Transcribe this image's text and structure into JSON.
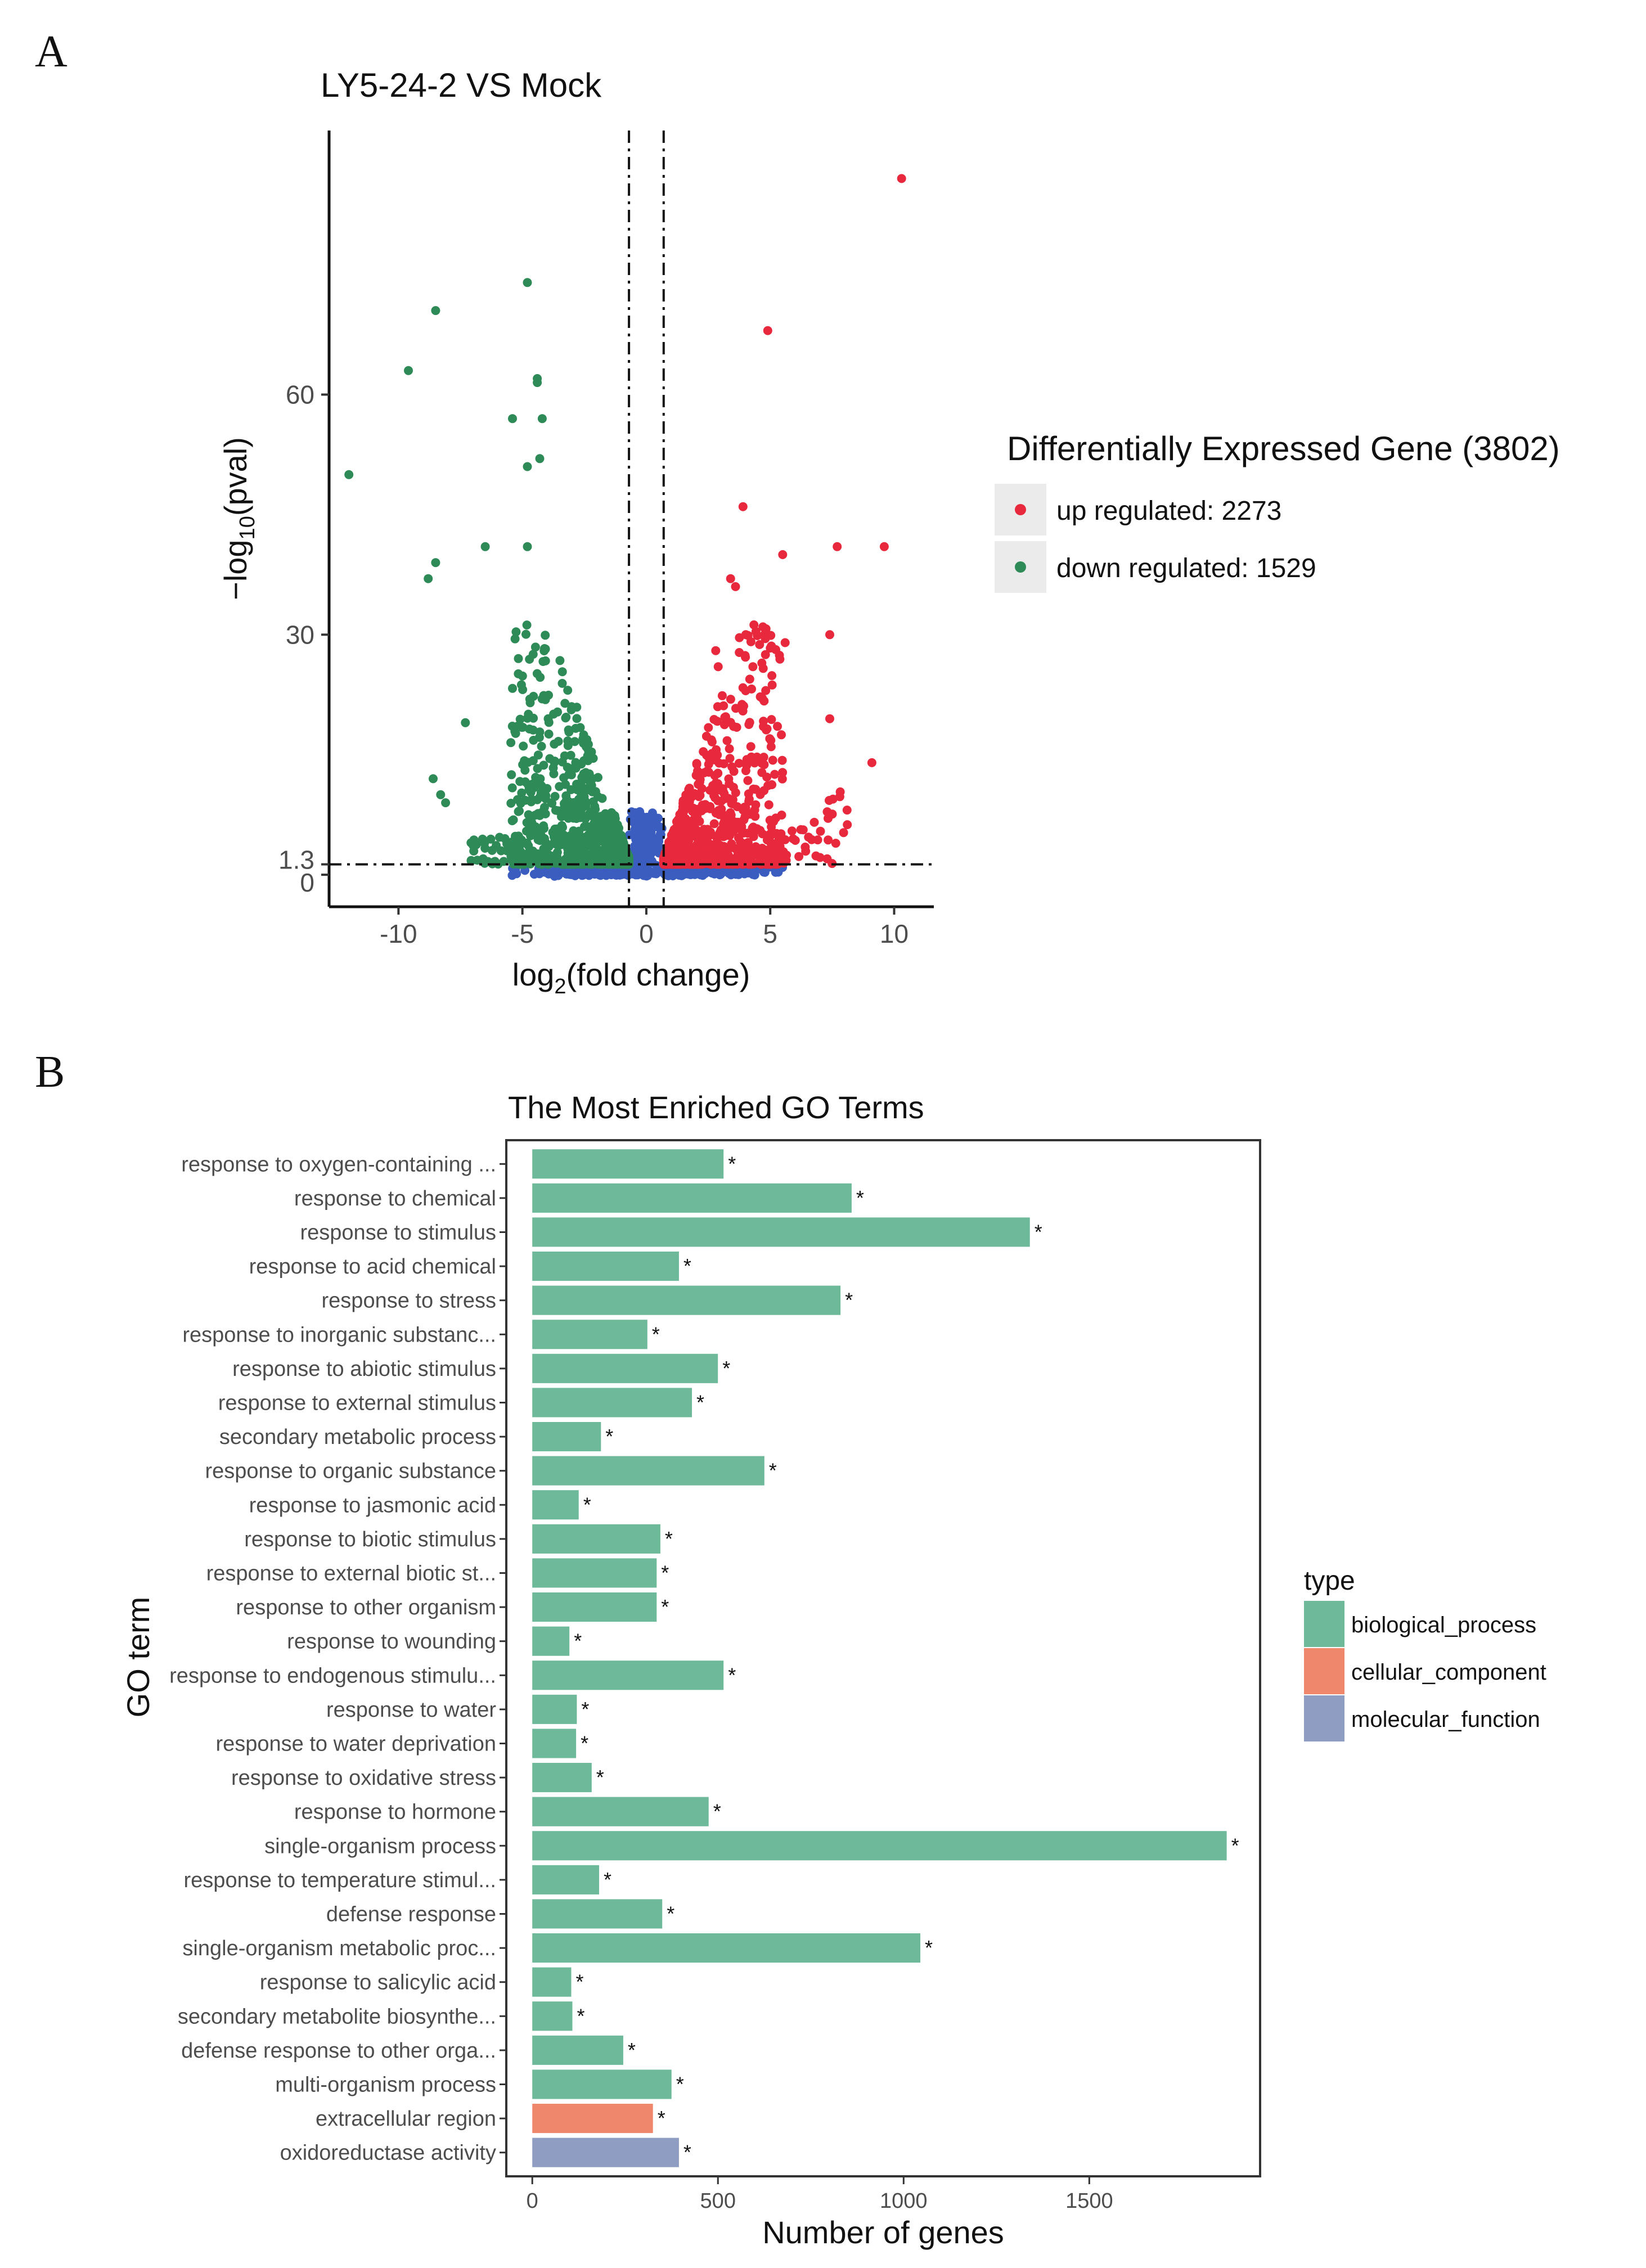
{
  "panels": {
    "a": "A",
    "b": "B"
  },
  "chart_data": [
    {
      "type": "scatter",
      "title": "LY5-24-2 VS Mock",
      "xlabel": {
        "main": "log",
        "sub": "2",
        "rest": "(fold change)"
      },
      "ylabel": {
        "pre": "−log",
        "sub": "10",
        "rest": "(pval)"
      },
      "xlim": [
        -12.8,
        11.6
      ],
      "ylim": [
        -4,
        93
      ],
      "x_ticks": [
        -10,
        -5,
        0,
        5,
        10
      ],
      "y_ticks": [
        {
          "value": 0,
          "label": "0"
        },
        {
          "value": 1.3,
          "label": "1.3"
        },
        {
          "value": 30,
          "label": "30"
        },
        {
          "value": 60,
          "label": "60"
        }
      ],
      "thresholds": {
        "log2fc": [
          -0.7,
          0.7
        ],
        "neg_log10_pval": 1.3
      },
      "legend_title": "Differentially Expressed Gene (3802)",
      "legend": [
        {
          "label": "up regulated: 2273",
          "color": "#e8283c"
        },
        {
          "label": "down regulated: 1529",
          "color": "#2e8b57"
        }
      ],
      "colors": {
        "up": "#e8283c",
        "down": "#2e8b57",
        "ns": "#3a5dbf"
      },
      "highlighted_points": {
        "up": [
          [
            10.3,
            87
          ],
          [
            4.9,
            68
          ],
          [
            3.9,
            46
          ],
          [
            5.5,
            40
          ],
          [
            7.7,
            41
          ],
          [
            9.6,
            41
          ],
          [
            3.4,
            37
          ],
          [
            3.6,
            36
          ],
          [
            7.4,
            30
          ],
          [
            5.6,
            29
          ],
          [
            4.8,
            29.5
          ],
          [
            7.4,
            19.5
          ],
          [
            9.1,
            14
          ],
          [
            4.3,
            26
          ],
          [
            2.8,
            28
          ],
          [
            2.9,
            26
          ]
        ],
        "down": [
          [
            -4.8,
            74
          ],
          [
            -8.5,
            70.5
          ],
          [
            -9.6,
            63
          ],
          [
            -4.4,
            62
          ],
          [
            -4.4,
            61.5
          ],
          [
            -5.4,
            57
          ],
          [
            -4.2,
            57
          ],
          [
            -12,
            50
          ],
          [
            -4.3,
            52
          ],
          [
            -4.8,
            51
          ],
          [
            -8.5,
            39
          ],
          [
            -8.8,
            37
          ],
          [
            -6.5,
            41
          ],
          [
            -4.8,
            41
          ],
          [
            -7.3,
            19
          ],
          [
            -8.6,
            12
          ],
          [
            -8.3,
            10
          ],
          [
            -8.1,
            9
          ]
        ]
      },
      "bulk_counts": {
        "up": 780,
        "down": 700,
        "ns": 520
      }
    },
    {
      "type": "bar",
      "orientation": "horizontal",
      "title": "The Most Enriched GO Terms",
      "xlabel": "Number of genes",
      "ylabel": "GO term",
      "xlim": [
        -70,
        1960
      ],
      "x_ticks": [
        0,
        500,
        1000,
        1500
      ],
      "legend_title": "type",
      "legend": [
        {
          "label": "biological_process",
          "color": "#6db999"
        },
        {
          "label": "cellular_component",
          "color": "#ef876d"
        },
        {
          "label": "molecular_function",
          "color": "#8f9dc3"
        }
      ],
      "bars": [
        {
          "term": "response to oxygen-containing ...",
          "value": 515,
          "type": "biological_process",
          "mark": "*"
        },
        {
          "term": "response to chemical",
          "value": 860,
          "type": "biological_process",
          "mark": "*"
        },
        {
          "term": "response to stimulus",
          "value": 1340,
          "type": "biological_process",
          "mark": "*"
        },
        {
          "term": "response to acid chemical",
          "value": 395,
          "type": "biological_process",
          "mark": "*"
        },
        {
          "term": "response to stress",
          "value": 830,
          "type": "biological_process",
          "mark": "*"
        },
        {
          "term": "response to inorganic substanc...",
          "value": 310,
          "type": "biological_process",
          "mark": "*"
        },
        {
          "term": "response to abiotic stimulus",
          "value": 500,
          "type": "biological_process",
          "mark": "*"
        },
        {
          "term": "response to external stimulus",
          "value": 430,
          "type": "biological_process",
          "mark": "*"
        },
        {
          "term": "secondary metabolic process",
          "value": 185,
          "type": "biological_process",
          "mark": "*"
        },
        {
          "term": "response to organic substance",
          "value": 625,
          "type": "biological_process",
          "mark": "*"
        },
        {
          "term": "response to jasmonic acid",
          "value": 125,
          "type": "biological_process",
          "mark": "*"
        },
        {
          "term": "response to biotic stimulus",
          "value": 345,
          "type": "biological_process",
          "mark": "*"
        },
        {
          "term": "response to external biotic st...",
          "value": 335,
          "type": "biological_process",
          "mark": "*"
        },
        {
          "term": "response to other organism",
          "value": 335,
          "type": "biological_process",
          "mark": "*"
        },
        {
          "term": "response to wounding",
          "value": 100,
          "type": "biological_process",
          "mark": "*"
        },
        {
          "term": "response to endogenous stimulu...",
          "value": 515,
          "type": "biological_process",
          "mark": "*"
        },
        {
          "term": "response to water",
          "value": 120,
          "type": "biological_process",
          "mark": "*"
        },
        {
          "term": "response to water deprivation",
          "value": 118,
          "type": "biological_process",
          "mark": "*"
        },
        {
          "term": "response to oxidative stress",
          "value": 160,
          "type": "biological_process",
          "mark": "*"
        },
        {
          "term": "response to hormone",
          "value": 475,
          "type": "biological_process",
          "mark": "*"
        },
        {
          "term": "single-organism process",
          "value": 1870,
          "type": "biological_process",
          "mark": "*"
        },
        {
          "term": "response to temperature stimul...",
          "value": 180,
          "type": "biological_process",
          "mark": "*"
        },
        {
          "term": "defense response",
          "value": 350,
          "type": "biological_process",
          "mark": "*"
        },
        {
          "term": "single-organism metabolic proc...",
          "value": 1045,
          "type": "biological_process",
          "mark": "*"
        },
        {
          "term": "response to salicylic acid",
          "value": 105,
          "type": "biological_process",
          "mark": "*"
        },
        {
          "term": "secondary metabolite biosynthe...",
          "value": 108,
          "type": "biological_process",
          "mark": "*"
        },
        {
          "term": "defense response to other orga...",
          "value": 245,
          "type": "biological_process",
          "mark": "*"
        },
        {
          "term": "multi-organism process",
          "value": 375,
          "type": "biological_process",
          "mark": "*"
        },
        {
          "term": "extracellular region",
          "value": 325,
          "type": "cellular_component",
          "mark": "*"
        },
        {
          "term": "oxidoreductase activity",
          "value": 395,
          "type": "molecular_function",
          "mark": "*"
        }
      ]
    }
  ]
}
